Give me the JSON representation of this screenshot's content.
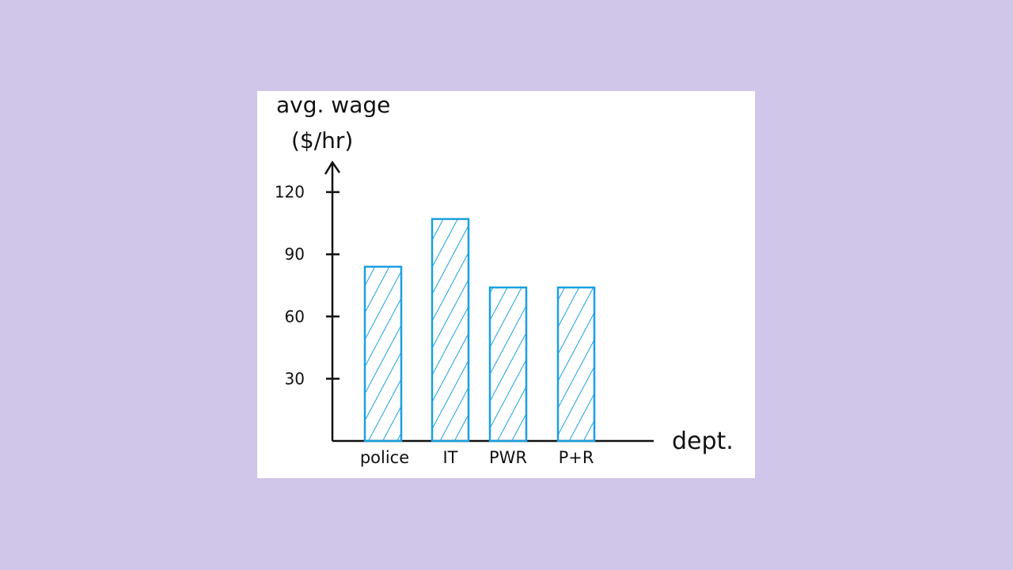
{
  "page": {
    "background": "#d0c6e9",
    "card_background": "#ffffff"
  },
  "chart_data": {
    "type": "bar",
    "categories": [
      "police",
      "IT",
      "PWR",
      "P+R"
    ],
    "values": [
      84,
      107,
      74,
      74
    ],
    "ylabel_line1": "avg. wage",
    "ylabel_line2": "($/hr)",
    "xlabel": "dept.",
    "ylim": [
      0,
      131
    ],
    "yticks": [
      30,
      60,
      90,
      120
    ],
    "ytick_labels": [
      "30",
      "60",
      "90",
      "120"
    ],
    "grid": false,
    "legend": "none",
    "bar_color": "#1aa0e0",
    "axis_color": "#111111",
    "fill_style": "hatched"
  }
}
